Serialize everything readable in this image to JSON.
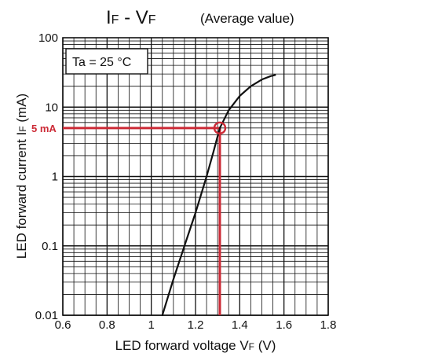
{
  "chart_data": {
    "type": "line",
    "title_main": "I",
    "title_main_sub": "F",
    "title_dash": " - V",
    "title_dash_sub": "F",
    "title_note": "(Average value)",
    "annotation": "Ta = 25 °C",
    "xlabel": "LED forward voltage V",
    "xlabel_sub": "F",
    "xlabel_unit": " (V)",
    "ylabel": "LED forward current I",
    "ylabel_sub": "F",
    "ylabel_unit": " (mA)",
    "xlim": [
      0.6,
      1.8
    ],
    "ylim": [
      0.01,
      100
    ],
    "yscale": "log",
    "xticks": [
      0.6,
      0.8,
      1.0,
      1.2,
      1.4,
      1.6,
      1.8
    ],
    "xtick_labels": [
      "0.6",
      "0.8",
      "1",
      "1.2",
      "1.4",
      "1.6",
      "1.8"
    ],
    "yticks": [
      0.01,
      0.1,
      1,
      10,
      100
    ],
    "ytick_labels": [
      "0.01",
      "0.1",
      "1",
      "10",
      "100"
    ],
    "grid": true,
    "series": [
      {
        "x": [
          1.05,
          1.1,
          1.15,
          1.2,
          1.25,
          1.28,
          1.31,
          1.35,
          1.4,
          1.45,
          1.5,
          1.54,
          1.56
        ],
        "y": [
          0.01,
          0.033,
          0.1,
          0.3,
          1.0,
          2.2,
          5.0,
          9.0,
          14.5,
          20.0,
          25.0,
          28.0,
          29.0
        ]
      }
    ],
    "marker": {
      "x": 1.31,
      "y": 5,
      "label": "5 mA",
      "color": "#cc2a36"
    },
    "colors": {
      "curve": "#111111",
      "grid": "#111111",
      "marker": "#cc2a36"
    }
  }
}
